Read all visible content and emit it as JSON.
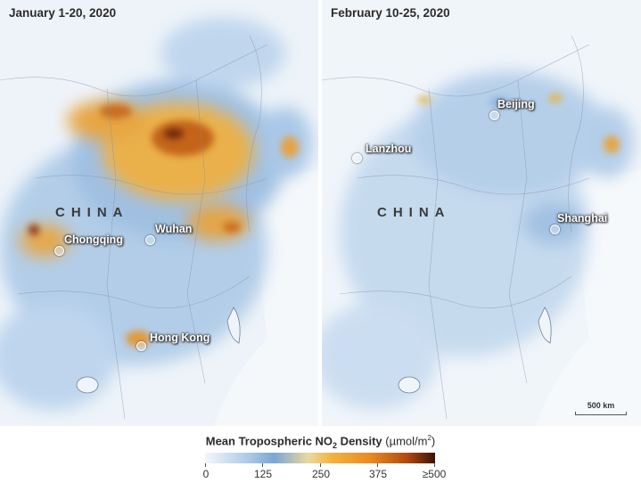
{
  "panels": {
    "left": {
      "title": "January 1-20, 2020",
      "country": "CHINA",
      "cities": [
        "Chongqing",
        "Wuhan",
        "Hong Kong"
      ]
    },
    "right": {
      "title": "February 10-25, 2020",
      "country": "CHINA",
      "cities": [
        "Beijing",
        "Lanzhou",
        "Shanghai"
      ],
      "scale_bar": "500 km"
    }
  },
  "legend": {
    "title_main": "Mean Tropospheric NO",
    "title_sub": "2",
    "title_tail": " Density ",
    "unit_open": "(µmol/m",
    "unit_sup": "2",
    "unit_close": ")",
    "ticks": [
      "0",
      "125",
      "250",
      "375",
      "≥500"
    ]
  },
  "colors": {
    "low": "#f4f7fb",
    "mid_low": "#7aa6d4",
    "mid": "#f2b33f",
    "high": "#3c1206"
  }
}
